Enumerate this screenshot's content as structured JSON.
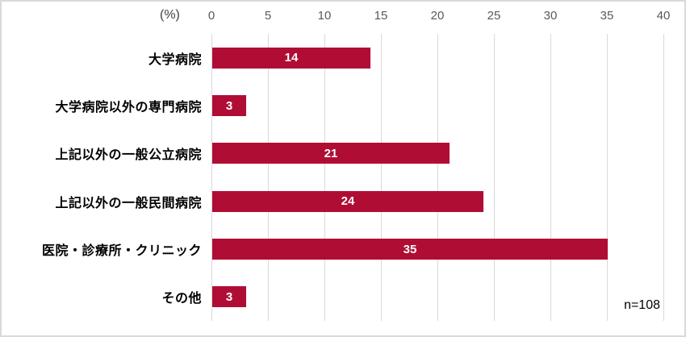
{
  "chart_data": {
    "type": "bar",
    "orientation": "horizontal",
    "title": "",
    "unit_label": "(%)",
    "categories": [
      "大学病院",
      "大学病院以外の専門病院",
      "上記以外の一般公立病院",
      "上記以外の一般民間病院",
      "医院・診療所・クリニック",
      "その他"
    ],
    "values": [
      14,
      3,
      21,
      24,
      35,
      3
    ],
    "xlim": [
      0,
      40
    ],
    "x_ticks": [
      0,
      5,
      10,
      15,
      20,
      25,
      30,
      35,
      40
    ],
    "grid": true,
    "legend": "none",
    "sample_size_label": "n=108",
    "colors": {
      "bar": "#B00D35",
      "value_text": "#FFFFFF",
      "gridline": "#D9D9D9",
      "tick_text": "#595959",
      "category_text": "#000000",
      "unit_text": "#404040",
      "border": "#D9D9D9"
    }
  }
}
